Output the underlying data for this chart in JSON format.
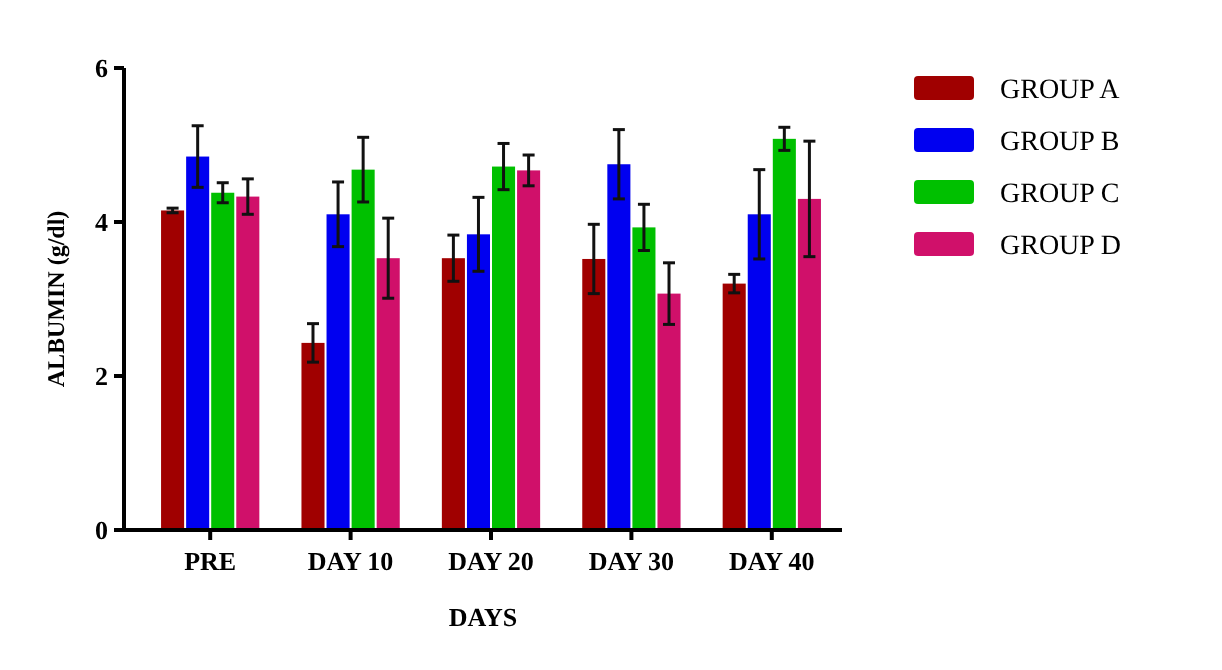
{
  "chart_data": {
    "type": "bar",
    "xlabel": "DAYS",
    "ylabel": "ALBUMIN (g/dl)",
    "categories": [
      "PRE",
      "DAY 10",
      "DAY 20",
      "DAY 30",
      "DAY 40"
    ],
    "series": [
      {
        "name": "GROUP A",
        "color": "#a00000",
        "values": [
          4.15,
          2.43,
          3.53,
          3.52,
          3.2
        ],
        "errors": [
          0.03,
          0.25,
          0.3,
          0.45,
          0.12
        ]
      },
      {
        "name": "GROUP B",
        "color": "#0000f0",
        "values": [
          4.85,
          4.1,
          3.84,
          4.75,
          4.1
        ],
        "errors": [
          0.4,
          0.42,
          0.48,
          0.45,
          0.58
        ]
      },
      {
        "name": "GROUP C",
        "color": "#00c000",
        "values": [
          4.38,
          4.68,
          4.72,
          3.93,
          5.08
        ],
        "errors": [
          0.13,
          0.42,
          0.3,
          0.3,
          0.15
        ]
      },
      {
        "name": "GROUP D",
        "color": "#d0106a",
        "values": [
          4.33,
          3.53,
          4.67,
          3.07,
          4.3
        ],
        "errors": [
          0.23,
          0.52,
          0.2,
          0.4,
          0.75
        ]
      }
    ],
    "ylim": [
      0,
      6
    ],
    "yticks": [
      0,
      2,
      4,
      6
    ],
    "legend": "right",
    "grid": false
  }
}
